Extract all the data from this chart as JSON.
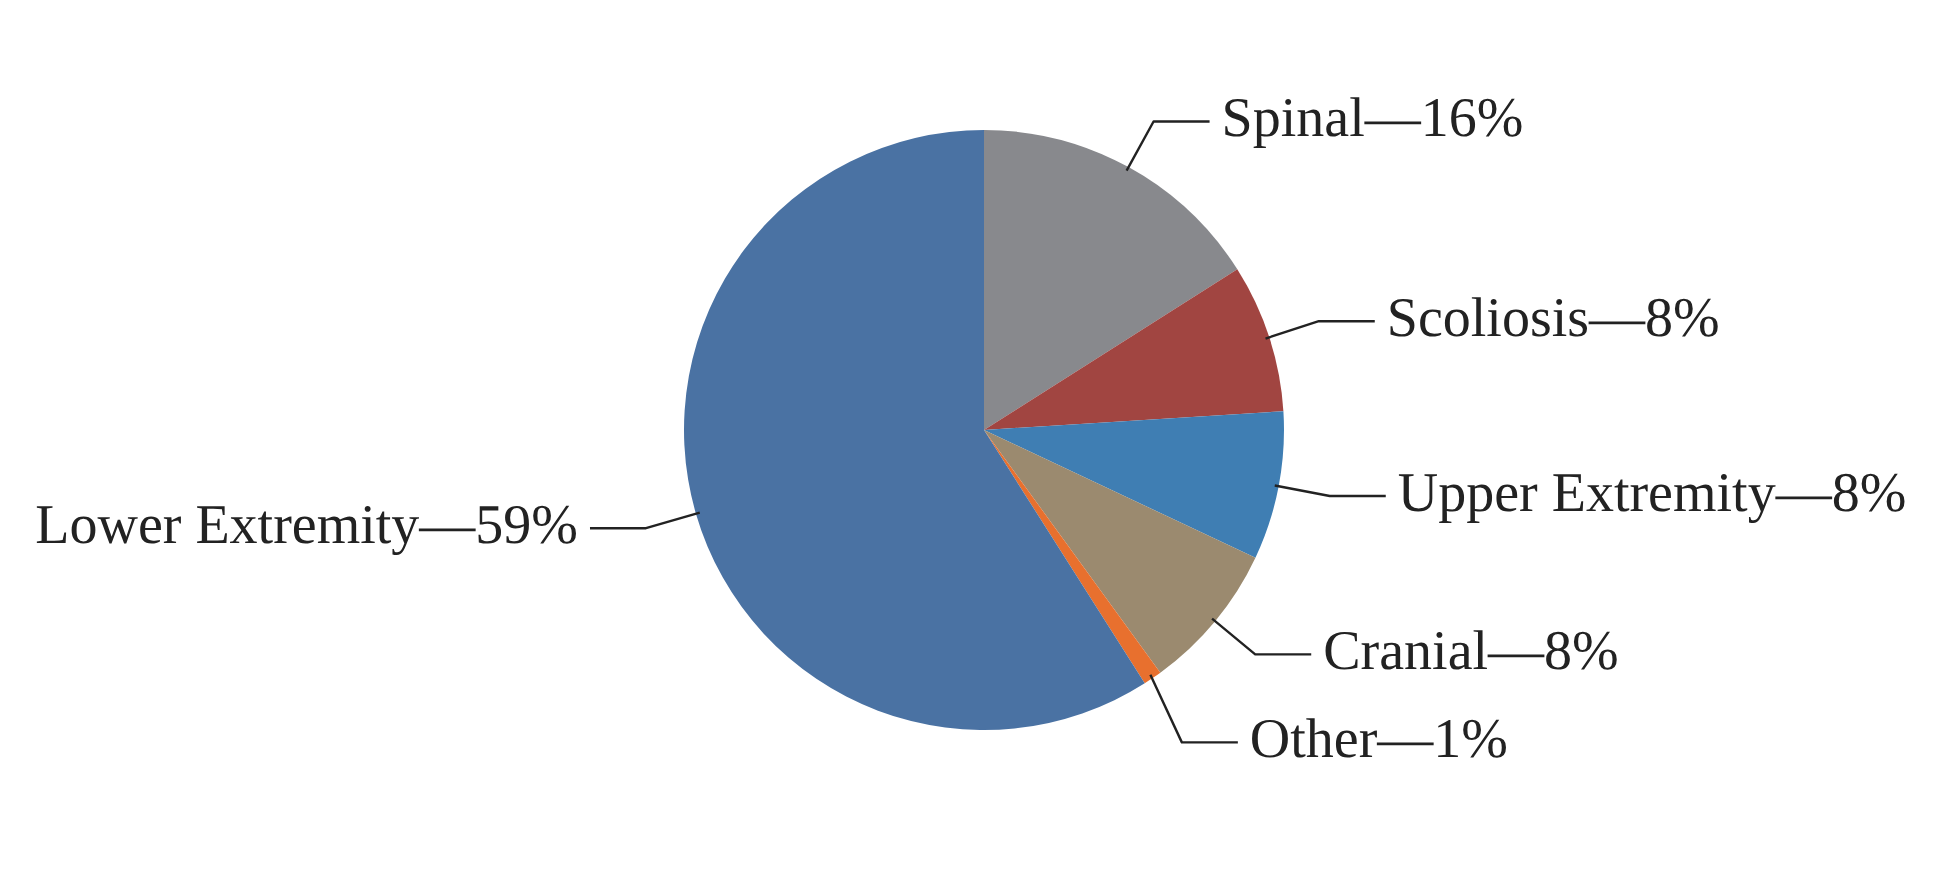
{
  "chart_data": {
    "type": "pie",
    "categories": [
      "Spinal—",
      "Scoliosis—",
      "Upper Extremity—",
      "Cranial—",
      "Other—",
      "Lower Extremity—"
    ],
    "values": [
      16,
      8,
      8,
      8,
      1,
      59
    ],
    "colors": [
      "#88898d",
      "#a14541",
      "#3f7eb3",
      "#9b8a6f",
      "#e8702e",
      "#4a72a3"
    ],
    "value_labels": [
      "16%",
      "8%",
      "8%",
      "8%",
      "1%",
      "59%"
    ]
  }
}
